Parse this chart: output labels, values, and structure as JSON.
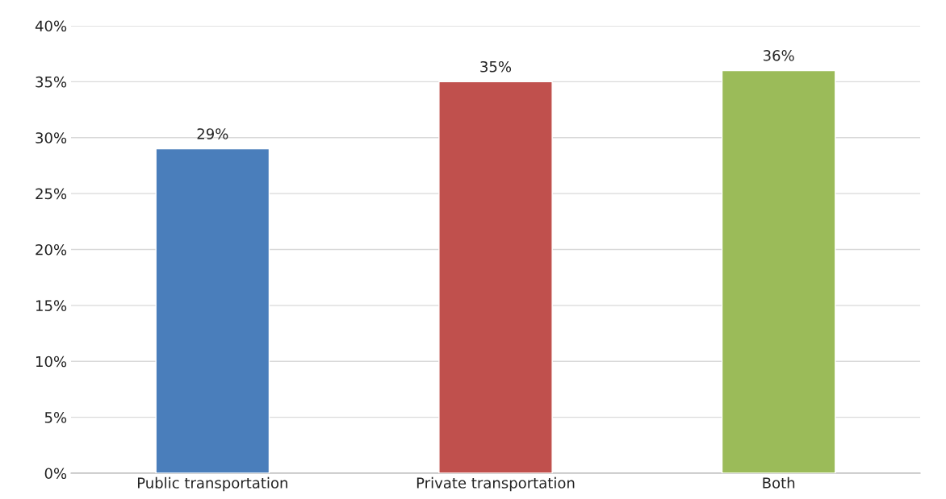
{
  "chart_data": {
    "type": "bar",
    "categories": [
      "Public transportation",
      "Private transportation",
      "Both"
    ],
    "values": [
      29,
      35,
      36
    ],
    "colors": [
      "#4a7ebb",
      "#c0504d",
      "#9bbb59"
    ],
    "value_labels": [
      "29%",
      "35%",
      "36%"
    ],
    "ylim": [
      0,
      40
    ],
    "yticks": [
      {
        "value": 0,
        "label": "0%"
      },
      {
        "value": 5,
        "label": "5%"
      },
      {
        "value": 10,
        "label": "10%"
      },
      {
        "value": 15,
        "label": "15%"
      },
      {
        "value": 20,
        "label": "20%"
      },
      {
        "value": 25,
        "label": "25%"
      },
      {
        "value": 30,
        "label": "30%"
      },
      {
        "value": 35,
        "label": "35%"
      },
      {
        "value": 40,
        "label": "40%"
      }
    ],
    "grid": "y",
    "legend": false
  }
}
